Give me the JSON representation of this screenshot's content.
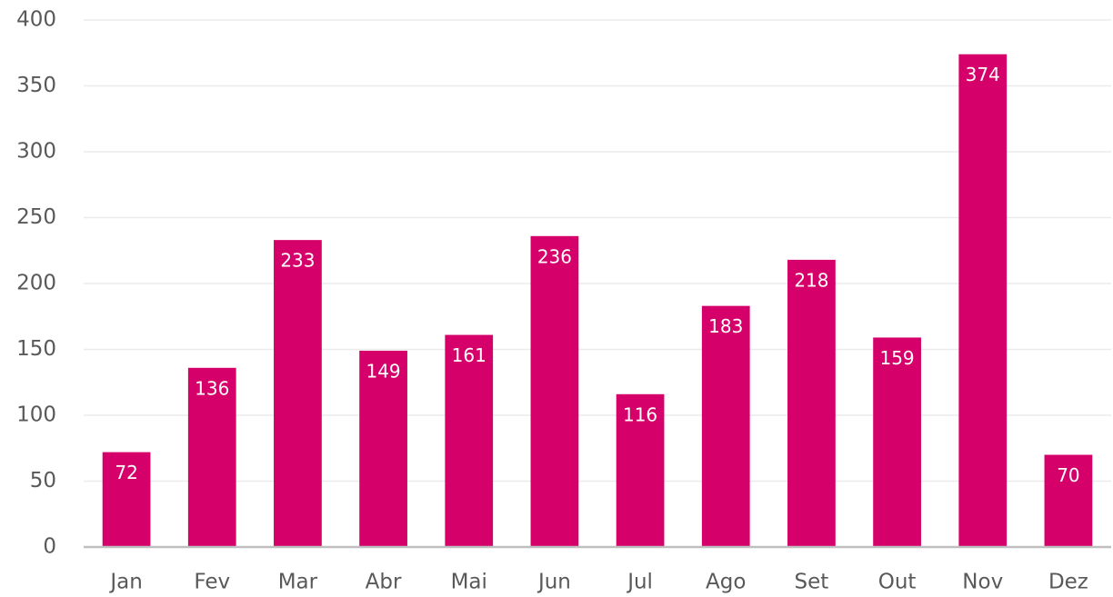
{
  "chart_data": {
    "type": "bar",
    "categories": [
      "Jan",
      "Fev",
      "Mar",
      "Abr",
      "Mai",
      "Jun",
      "Jul",
      "Ago",
      "Set",
      "Out",
      "Nov",
      "Dez"
    ],
    "values": [
      72,
      136,
      233,
      149,
      161,
      236,
      116,
      183,
      218,
      159,
      374,
      70
    ],
    "color": "#d5006a",
    "ylim": [
      0,
      400
    ],
    "yticks": [
      0,
      50,
      100,
      150,
      200,
      250,
      300,
      350,
      400
    ],
    "grid": true
  }
}
